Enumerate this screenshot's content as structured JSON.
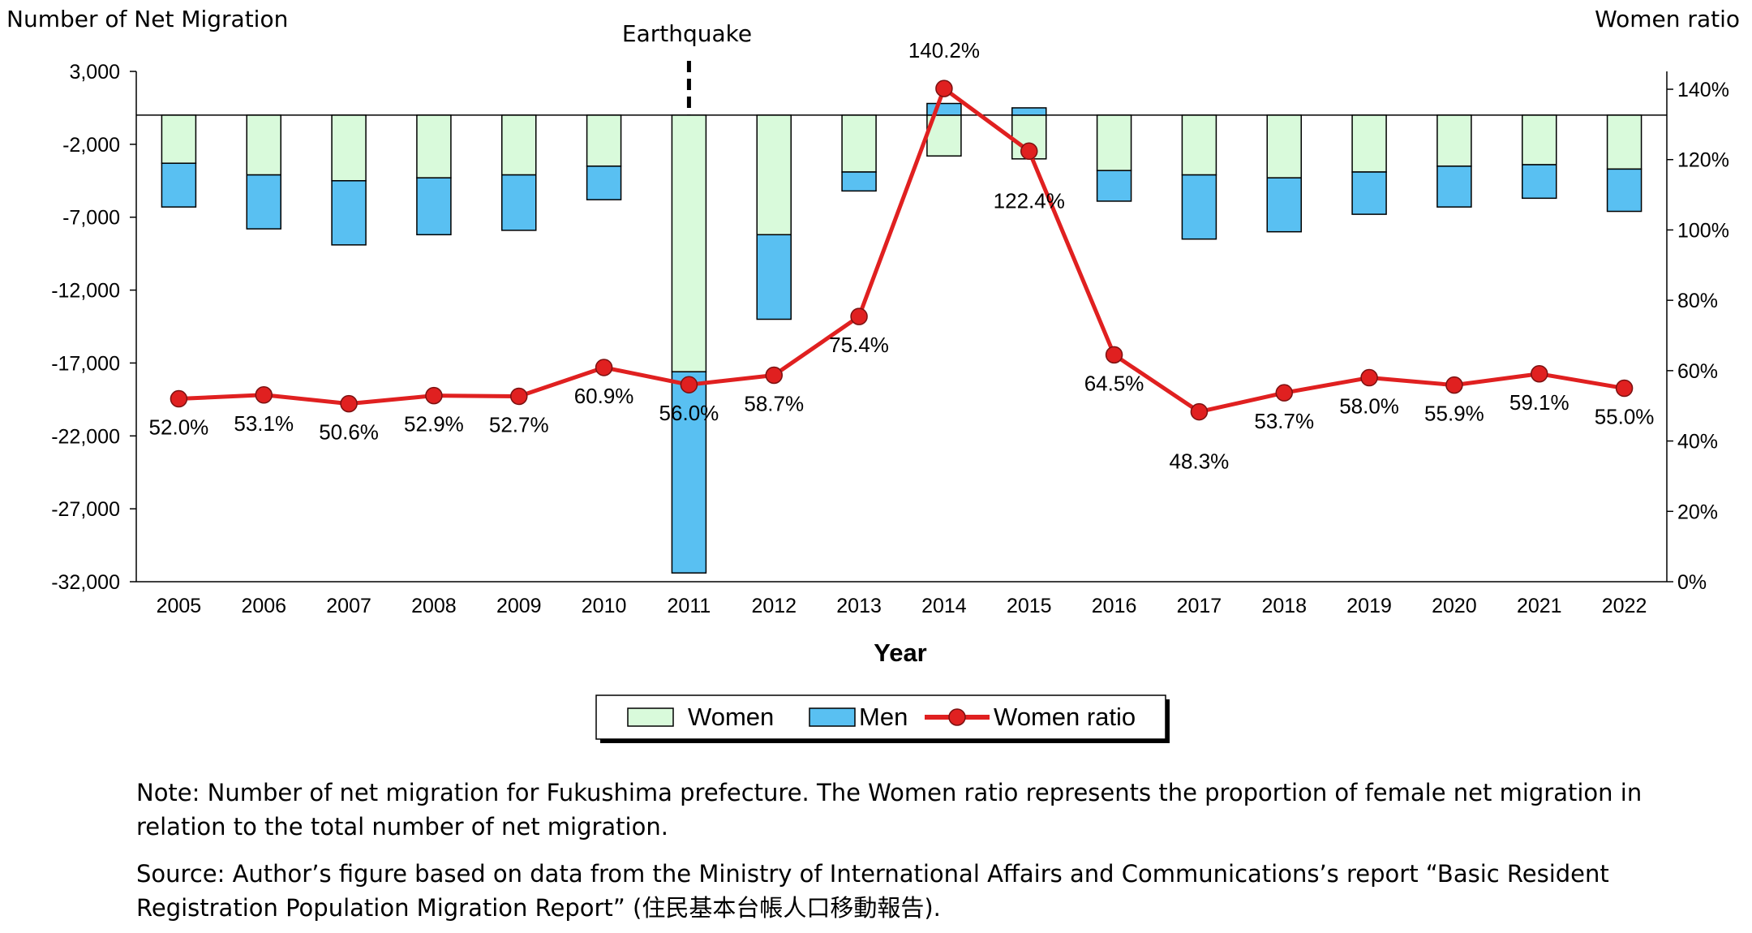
{
  "chart_data": {
    "type": "bar",
    "stacked": true,
    "categories": [
      "2005",
      "2006",
      "2007",
      "2008",
      "2009",
      "2010",
      "2011",
      "2012",
      "2013",
      "2014",
      "2015",
      "2016",
      "2017",
      "2018",
      "2019",
      "2020",
      "2021",
      "2022"
    ],
    "series": [
      {
        "name": "Women",
        "axis": "left",
        "color": "#d9fadb",
        "values": [
          -3300,
          -4100,
          -4500,
          -4300,
          -4100,
          -3500,
          -17600,
          -8200,
          -3900,
          -2800,
          -3000,
          -3800,
          -4100,
          -4300,
          -3900,
          -3500,
          -3400,
          -3700
        ]
      },
      {
        "name": "Men",
        "axis": "left",
        "color": "#59c0f2",
        "values": [
          -3000,
          -3700,
          -4400,
          -3900,
          -3800,
          -2300,
          -13800,
          -5800,
          -1300,
          800,
          500,
          -2100,
          -4400,
          -3700,
          -2900,
          -2800,
          -2300,
          -2900
        ]
      },
      {
        "name": "Women ratio",
        "axis": "right",
        "type": "line",
        "color": "#e02020",
        "values": [
          52.0,
          53.1,
          50.6,
          52.9,
          52.7,
          60.9,
          56.0,
          58.7,
          75.4,
          140.2,
          122.4,
          64.5,
          48.3,
          53.7,
          58.0,
          55.9,
          59.1,
          55.0
        ],
        "labels": [
          "52.0%",
          "53.1%",
          "50.6%",
          "52.9%",
          "52.7%",
          "60.9%",
          "56.0%",
          "58.7%",
          "75.4%",
          "140.2%",
          "122.4%",
          "64.5%",
          "48.3%",
          "53.7%",
          "58.0%",
          "55.9%",
          "59.1%",
          "55.0%"
        ]
      }
    ],
    "xlabel": "Year",
    "ylabel_left": "Number of Net Migration",
    "ylabel_right": "Women ratio",
    "ylim_left": [
      -32000,
      3000
    ],
    "yticks_left": [
      "3,000",
      "-2,000",
      "-7,000",
      "-12,000",
      "-17,000",
      "-22,000",
      "-27,000",
      "-32,000"
    ],
    "ylim_right": [
      0,
      145
    ],
    "yticks_right": [
      "140%",
      "120%",
      "100%",
      "80%",
      "60%",
      "40%",
      "20%",
      "0%"
    ],
    "annotation": {
      "label": "Earthquake",
      "category": "2011"
    },
    "legend": {
      "position": "bottom",
      "items": [
        "Women",
        "Men",
        "Women ratio"
      ]
    },
    "grid": false
  },
  "note": "Note: Number of net migration for Fukushima prefecture. The Women ratio represents the proportion of female net migration in relation to the total number of net migration.",
  "source": "Source: Author’s figure based on data from the Ministry of International Affairs and Communications’s report “Basic Resident Registration Population Migration Report” (住民基本台帳人口移動報告)."
}
